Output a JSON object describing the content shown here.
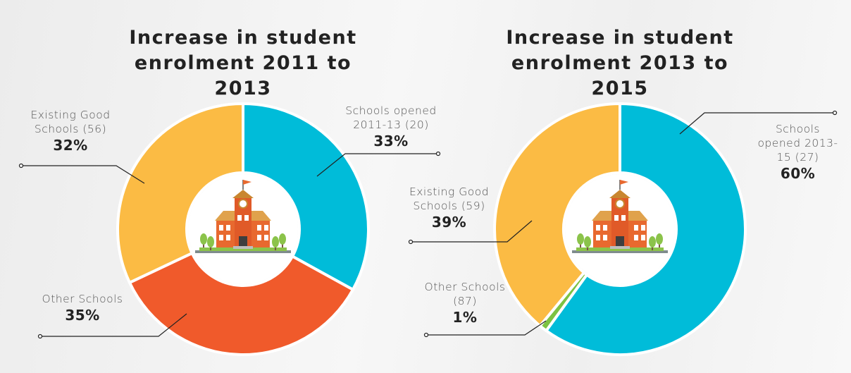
{
  "chart_data": [
    {
      "type": "pie",
      "title": "Increase in student enrolment 2011 to 2013",
      "categories": [
        "Schools opened 2011-13 (20)",
        "Other Schools",
        "Existing Good Schools (56)"
      ],
      "values": [
        33,
        35,
        32
      ],
      "value_labels": [
        "33%",
        "35%",
        "32%"
      ],
      "colors": [
        "#00bcd9",
        "#f05a2b",
        "#fbbb44"
      ]
    },
    {
      "type": "pie",
      "title": "Increase in student enrolment 2013 to 2015",
      "categories": [
        "Schools opened 2013-15 (27)",
        "Other Schools (87)",
        "Existing Good Schools (59)"
      ],
      "values": [
        60,
        1,
        39
      ],
      "value_labels": [
        "60%",
        "1%",
        "39%"
      ],
      "colors": [
        "#00bcd9",
        "#7cc242",
        "#fbbb44"
      ]
    }
  ]
}
